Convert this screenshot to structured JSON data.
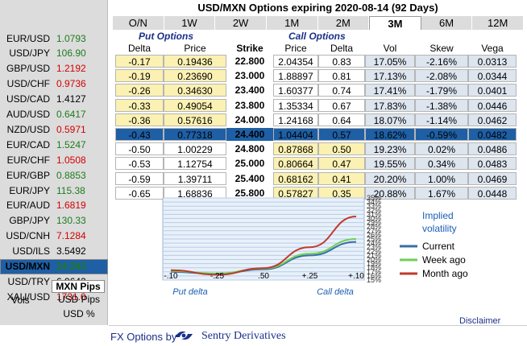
{
  "title": "USD/MXN Options expiring 2020-08-14 (92 Days)",
  "tabs": [
    "O/N",
    "1W",
    "2W",
    "1M",
    "2M",
    "3M",
    "6M",
    "12M"
  ],
  "active_tab": "3M",
  "pairs": [
    {
      "name": "EUR/USD",
      "value": "1.0793",
      "color": "#1e7b1e"
    },
    {
      "name": "USD/JPY",
      "value": "106.90",
      "color": "#1e7b1e"
    },
    {
      "name": "GBP/USD",
      "value": "1.2192",
      "color": "#d40000"
    },
    {
      "name": "USD/CHF",
      "value": "0.9736",
      "color": "#d40000"
    },
    {
      "name": "USD/CAD",
      "value": "1.4127",
      "color": "#000000"
    },
    {
      "name": "AUD/USD",
      "value": "0.6417",
      "color": "#1e7b1e"
    },
    {
      "name": "NZD/USD",
      "value": "0.5971",
      "color": "#d40000"
    },
    {
      "name": "EUR/CAD",
      "value": "1.5247",
      "color": "#1e7b1e"
    },
    {
      "name": "EUR/CHF",
      "value": "1.0508",
      "color": "#d40000"
    },
    {
      "name": "EUR/GBP",
      "value": "0.8853",
      "color": "#1e7b1e"
    },
    {
      "name": "EUR/JPY",
      "value": "115.38",
      "color": "#1e7b1e"
    },
    {
      "name": "EUR/AUD",
      "value": "1.6819",
      "color": "#d40000"
    },
    {
      "name": "GBP/JPY",
      "value": "130.33",
      "color": "#1e7b1e"
    },
    {
      "name": "USD/CNH",
      "value": "7.1284",
      "color": "#d40000"
    },
    {
      "name": "USD/ILS",
      "value": "3.5492",
      "color": "#000000"
    },
    {
      "name": "USD/MXN",
      "value": "24.343",
      "color": "#1e7b1e",
      "selected": true
    },
    {
      "name": "USD/TRY",
      "value": "6.9642",
      "color": "#000000"
    },
    {
      "name": "XAU/USD",
      "value": "1731.0",
      "color": "#d40000"
    }
  ],
  "units": {
    "selected": "MXN Pips",
    "vols_label": "Vols",
    "usd_pips": "USD Pips",
    "usd_pct": "USD %"
  },
  "sections": {
    "put": "Put Options",
    "call": "Call Options"
  },
  "headers": {
    "put_delta": "Delta",
    "put_price": "Price",
    "strike": "Strike",
    "call_price": "Price",
    "call_delta": "Delta",
    "vol": "Vol",
    "skew": "Skew",
    "vega": "Vega"
  },
  "rows": [
    {
      "put_delta": "-0.17",
      "put_price": "0.19436",
      "strike": "22.800",
      "call_price": "2.04354",
      "call_delta": "0.83",
      "vol": "17.05%",
      "skew": "-2.16%",
      "vega": "0.0313"
    },
    {
      "put_delta": "-0.19",
      "put_price": "0.23690",
      "strike": "23.000",
      "call_price": "1.88897",
      "call_delta": "0.81",
      "vol": "17.13%",
      "skew": "-2.08%",
      "vega": "0.0344"
    },
    {
      "put_delta": "-0.26",
      "put_price": "0.34630",
      "strike": "23.400",
      "call_price": "1.60377",
      "call_delta": "0.74",
      "vol": "17.41%",
      "skew": "-1.79%",
      "vega": "0.0401"
    },
    {
      "put_delta": "-0.33",
      "put_price": "0.49054",
      "strike": "23.800",
      "call_price": "1.35334",
      "call_delta": "0.67",
      "vol": "17.83%",
      "skew": "-1.38%",
      "vega": "0.0446"
    },
    {
      "put_delta": "-0.36",
      "put_price": "0.57616",
      "strike": "24.000",
      "call_price": "1.24168",
      "call_delta": "0.64",
      "vol": "18.07%",
      "skew": "-1.14%",
      "vega": "0.0462"
    },
    {
      "put_delta": "-0.43",
      "put_price": "0.77318",
      "strike": "24.400",
      "call_price": "1.04404",
      "call_delta": "0.57",
      "vol": "18.62%",
      "skew": "-0.59%",
      "vega": "0.0482",
      "selected": true
    },
    {
      "put_delta": "-0.50",
      "put_price": "1.00229",
      "strike": "24.800",
      "call_price": "0.87868",
      "call_delta": "0.50",
      "vol": "19.23%",
      "skew": "0.02%",
      "vega": "0.0486"
    },
    {
      "put_delta": "-0.53",
      "put_price": "1.12754",
      "strike": "25.000",
      "call_price": "0.80664",
      "call_delta": "0.47",
      "vol": "19.55%",
      "skew": "0.34%",
      "vega": "0.0483"
    },
    {
      "put_delta": "-0.59",
      "put_price": "1.39711",
      "strike": "25.400",
      "call_price": "0.68162",
      "call_delta": "0.41",
      "vol": "20.20%",
      "skew": "1.00%",
      "vega": "0.0469"
    },
    {
      "put_delta": "-0.65",
      "put_price": "1.68836",
      "strike": "25.800",
      "call_price": "0.57827",
      "call_delta": "0.35",
      "vol": "20.88%",
      "skew": "1.67%",
      "vega": "0.0448"
    }
  ],
  "chart_data": {
    "type": "line",
    "x": [
      ".10",
      ".25",
      ".50",
      ".25",
      ".10"
    ],
    "x_positions_labels": [
      "-.10",
      "-.25",
      ".50",
      "+.25",
      "+.10"
    ],
    "xlabel_left": "Put delta",
    "xlabel_right": "Call delta",
    "legend_title": "Implied volatility",
    "ylim": [
      15,
      35
    ],
    "y_ticks": [
      "35%",
      "34%",
      "33%",
      "32%",
      "31%",
      "30%",
      "29%",
      "28%",
      "27%",
      "26%",
      "25%",
      "24%",
      "23%",
      "22%",
      "21%",
      "20%",
      "19%",
      "18%",
      "17%",
      "16%",
      "15%"
    ],
    "series": [
      {
        "name": "Current",
        "color": "#3a6ea5",
        "values": [
          17.0,
          16.5,
          17.6,
          21.0,
          24.3
        ]
      },
      {
        "name": "Week ago",
        "color": "#6fcf57",
        "values": [
          17.2,
          16.6,
          17.8,
          21.4,
          25.0
        ]
      },
      {
        "name": "Month ago",
        "color": "#c0392b",
        "values": [
          17.4,
          16.3,
          17.9,
          23.0,
          30.5
        ]
      }
    ]
  },
  "footer": {
    "fx": "FX Options by",
    "brand": "Sentry Derivatives",
    "disclaimer": "Disclaimer"
  }
}
